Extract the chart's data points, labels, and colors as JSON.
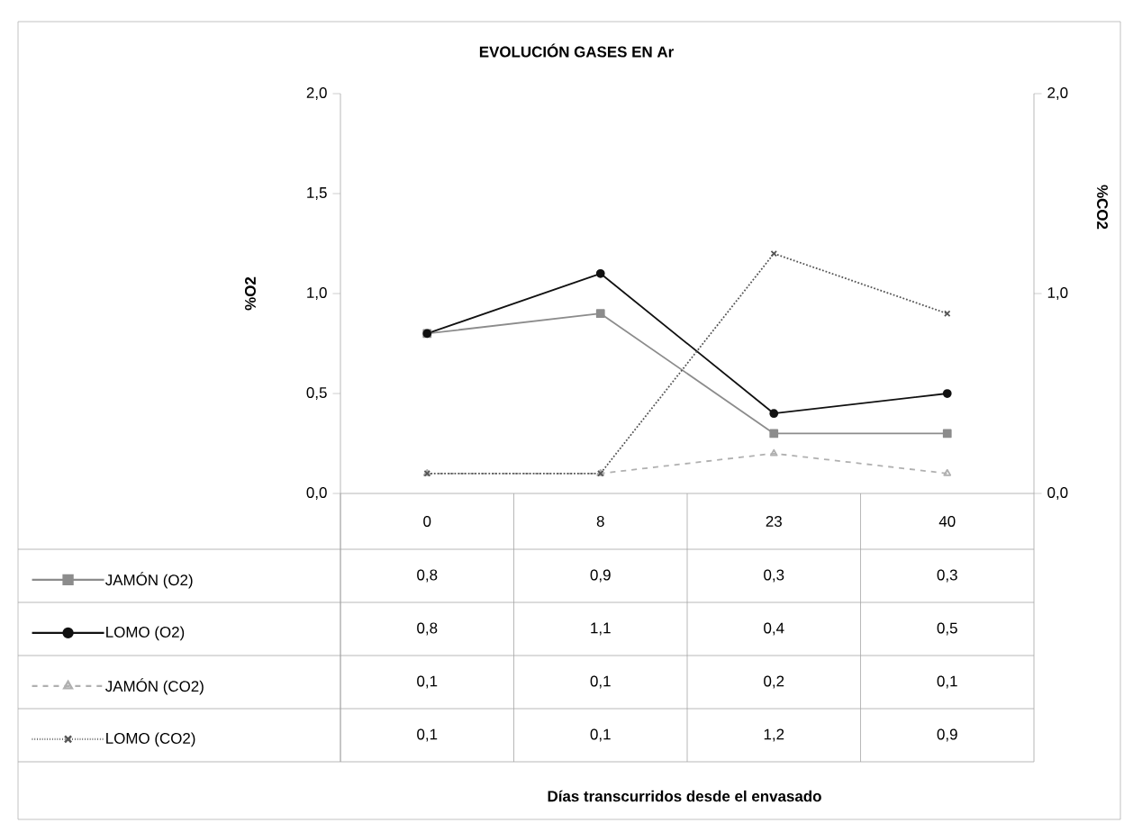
{
  "chart_data": {
    "type": "line",
    "title": "EVOLUCIÓN GASES EN Ar",
    "annotations": [
      "Días transcurridos desde el envasado"
    ],
    "ylabel": "%O2",
    "y2label": "%CO2",
    "categories": [
      "0",
      "8",
      "23",
      "40"
    ],
    "series": [
      {
        "name": "JAMÓN (O2)",
        "color": "#8c8c8c",
        "marker": "square",
        "line_style": "solid",
        "values": [
          0.8,
          0.9,
          0.3,
          0.3
        ],
        "value_labels": [
          "0,8",
          "0,9",
          "0,3",
          "0,3"
        ]
      },
      {
        "name": "LOMO (O2)",
        "color": "#111111",
        "marker": "circle",
        "line_style": "solid",
        "values": [
          0.8,
          1.1,
          0.4,
          0.5
        ],
        "value_labels": [
          "0,8",
          "1,1",
          "0,4",
          "0,5"
        ]
      },
      {
        "name": "JAMÓN (CO2)",
        "color": "#b0b0b0",
        "marker": "triangle",
        "line_style": "dashed",
        "axis": "y2",
        "values": [
          0.1,
          0.1,
          0.2,
          0.1
        ],
        "value_labels": [
          "0,1",
          "0,1",
          "0,2",
          "0,1"
        ]
      },
      {
        "name": "LOMO (CO2)",
        "color": "#555555",
        "marker": "cross",
        "line_style": "dotted",
        "axis": "y2",
        "values": [
          0.1,
          0.1,
          1.2,
          0.9
        ],
        "value_labels": [
          "0,1",
          "0,1",
          "1,2",
          "0,9"
        ]
      }
    ],
    "ylim": [
      0,
      2
    ],
    "yticks": [
      {
        "value": 0,
        "label": "0,0"
      },
      {
        "value": 0.5,
        "label": "0,5"
      },
      {
        "value": 1,
        "label": "1,0"
      },
      {
        "value": 1.5,
        "label": "1,5"
      },
      {
        "value": 2,
        "label": "2,0"
      }
    ],
    "y2lim": [
      0,
      2
    ],
    "y2ticks": [
      {
        "value": 0,
        "label": "0,0"
      },
      {
        "value": 1,
        "label": "1,0"
      },
      {
        "value": 2,
        "label": "2,0"
      }
    ],
    "legend": "bottom",
    "grid": false
  }
}
